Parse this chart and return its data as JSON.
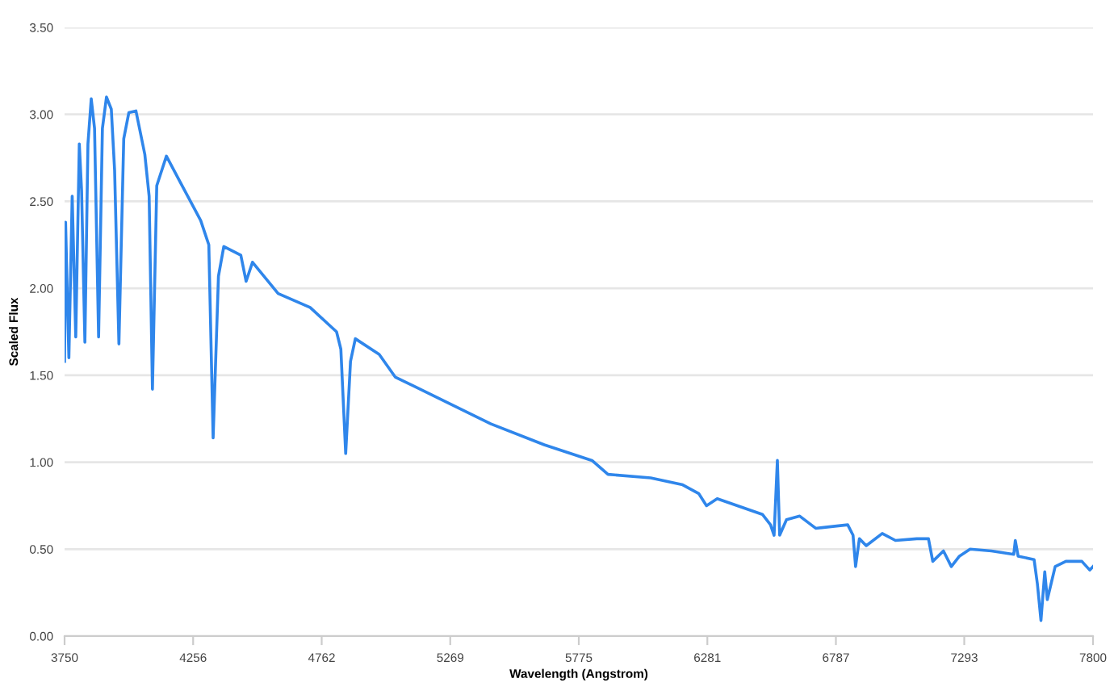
{
  "chart_data": {
    "type": "line",
    "xlabel": "Wavelength (Angstrom)",
    "ylabel": "Scaled Flux",
    "xlim": [
      3750,
      7800
    ],
    "xticks": [
      3750,
      {
        "value": 4256.25,
        "label": "4256"
      },
      {
        "value": 4762.5,
        "label": "4762"
      },
      {
        "value": 5268.75,
        "label": "5269"
      },
      5775,
      {
        "value": 6281.25,
        "label": "6281"
      },
      {
        "value": 6787.5,
        "label": "6787"
      },
      7293,
      7800
    ],
    "ylim": [
      0,
      3.5
    ],
    "yticks": [
      {
        "value": 0,
        "label": "0.00"
      },
      {
        "value": 0.5,
        "label": "0.50"
      },
      {
        "value": 1,
        "label": "1.00"
      },
      {
        "value": 1.5,
        "label": "1.50"
      },
      {
        "value": 2,
        "label": "2.00"
      },
      {
        "value": 2.5,
        "label": "2.50"
      },
      {
        "value": 3,
        "label": "3.00"
      },
      {
        "value": 3.5,
        "label": "3.50"
      }
    ],
    "grid": "y",
    "marker": "none",
    "line_style": "solid",
    "series": [
      {
        "color": "#2f86eb",
        "x": [
          3750,
          3754,
          3761,
          3767,
          3780,
          3794,
          3808,
          3817,
          3830,
          3842,
          3855,
          3868,
          3884,
          3899,
          3915,
          3934,
          3947,
          3964,
          3983,
          4003,
          4031,
          4066,
          4083,
          4096,
          4113,
          4151,
          4213,
          4286,
          4318,
          4335,
          4356,
          4377,
          4444,
          4465,
          4490,
          4591,
          4717,
          4821,
          4838,
          4857,
          4876,
          4895,
          4989,
          5052,
          5220,
          5429,
          5639,
          5827,
          5890,
          6058,
          6184,
          6247,
          6278,
          6320,
          6498,
          6530,
          6544,
          6557,
          6566,
          6593,
          6645,
          6708,
          6834,
          6855,
          6865,
          6880,
          6907,
          6970,
          7022,
          7106,
          7152,
          7169,
          7211,
          7242,
          7274,
          7316,
          7400,
          7488,
          7494,
          7505,
          7568,
          7581,
          7595,
          7610,
          7620,
          7651,
          7693,
          7756,
          7787,
          7800
        ],
        "values": [
          1.58,
          2.38,
          1.95,
          1.6,
          2.53,
          1.72,
          2.83,
          2.56,
          1.69,
          2.83,
          3.09,
          2.92,
          1.72,
          2.92,
          3.1,
          3.03,
          2.68,
          1.68,
          2.86,
          3.01,
          3.02,
          2.77,
          2.53,
          1.42,
          2.59,
          2.76,
          2.59,
          2.39,
          2.25,
          1.14,
          2.07,
          2.24,
          2.19,
          2.04,
          2.15,
          1.97,
          1.89,
          1.75,
          1.65,
          1.05,
          1.58,
          1.71,
          1.62,
          1.49,
          1.37,
          1.22,
          1.1,
          1.01,
          0.93,
          0.91,
          0.87,
          0.82,
          0.75,
          0.79,
          0.7,
          0.64,
          0.58,
          1.01,
          0.58,
          0.67,
          0.69,
          0.62,
          0.64,
          0.58,
          0.4,
          0.56,
          0.52,
          0.59,
          0.55,
          0.56,
          0.56,
          0.43,
          0.49,
          0.4,
          0.46,
          0.5,
          0.49,
          0.47,
          0.55,
          0.46,
          0.44,
          0.3,
          0.09,
          0.37,
          0.21,
          0.4,
          0.43,
          0.43,
          0.38,
          0.4
        ]
      }
    ]
  }
}
